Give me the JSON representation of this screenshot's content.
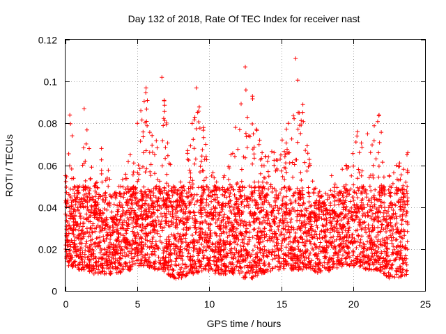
{
  "chart_data": {
    "type": "scatter",
    "title": "Day 132 of 2018, Rate Of TEC Index for receiver nast",
    "xlabel": "GPS time / hours",
    "ylabel": "ROTI / TECUs",
    "xlim": [
      0,
      25
    ],
    "ylim": [
      0,
      0.12
    ],
    "xticks": [
      0,
      5,
      10,
      15,
      20,
      25
    ],
    "yticks": [
      0,
      0.02,
      0.04,
      0.06,
      0.08,
      0.1,
      0.12
    ],
    "xtick_labels": [
      "0",
      "5",
      "10",
      "15",
      "20",
      "25"
    ],
    "ytick_labels": [
      "0",
      "0.02",
      "0.04",
      "0.06",
      "0.08",
      "0.1",
      "0.12"
    ],
    "grid": true,
    "marker": "+",
    "color": "#ff0000",
    "series": [
      {
        "name": "ROTI",
        "x_range_hours": [
          0,
          23.8
        ],
        "envelope": [
          {
            "x": 0.0,
            "low": 0.012,
            "high": 0.055
          },
          {
            "x": 0.3,
            "low": 0.012,
            "high": 0.084
          },
          {
            "x": 1.0,
            "low": 0.01,
            "high": 0.05
          },
          {
            "x": 1.3,
            "low": 0.01,
            "high": 0.087
          },
          {
            "x": 2.0,
            "low": 0.008,
            "high": 0.05
          },
          {
            "x": 2.5,
            "low": 0.008,
            "high": 0.068
          },
          {
            "x": 3.5,
            "low": 0.008,
            "high": 0.047
          },
          {
            "x": 4.5,
            "low": 0.01,
            "high": 0.065
          },
          {
            "x": 5.0,
            "low": 0.012,
            "high": 0.08
          },
          {
            "x": 5.6,
            "low": 0.012,
            "high": 0.097
          },
          {
            "x": 6.2,
            "low": 0.01,
            "high": 0.065
          },
          {
            "x": 6.7,
            "low": 0.01,
            "high": 0.102
          },
          {
            "x": 7.5,
            "low": 0.006,
            "high": 0.05
          },
          {
            "x": 8.0,
            "low": 0.005,
            "high": 0.052
          },
          {
            "x": 8.5,
            "low": 0.008,
            "high": 0.067
          },
          {
            "x": 9.1,
            "low": 0.008,
            "high": 0.097
          },
          {
            "x": 9.6,
            "low": 0.01,
            "high": 0.078
          },
          {
            "x": 10.5,
            "low": 0.008,
            "high": 0.052
          },
          {
            "x": 11.5,
            "low": 0.008,
            "high": 0.065
          },
          {
            "x": 12.5,
            "low": 0.006,
            "high": 0.107
          },
          {
            "x": 13.0,
            "low": 0.006,
            "high": 0.093
          },
          {
            "x": 13.5,
            "low": 0.008,
            "high": 0.072
          },
          {
            "x": 14.5,
            "low": 0.01,
            "high": 0.066
          },
          {
            "x": 15.5,
            "low": 0.01,
            "high": 0.08
          },
          {
            "x": 16.0,
            "low": 0.01,
            "high": 0.111
          },
          {
            "x": 16.5,
            "low": 0.01,
            "high": 0.089
          },
          {
            "x": 17.0,
            "low": 0.01,
            "high": 0.06
          },
          {
            "x": 17.8,
            "low": 0.008,
            "high": 0.045
          },
          {
            "x": 18.5,
            "low": 0.01,
            "high": 0.055
          },
          {
            "x": 19.5,
            "low": 0.012,
            "high": 0.06
          },
          {
            "x": 20.3,
            "low": 0.012,
            "high": 0.076
          },
          {
            "x": 21.0,
            "low": 0.01,
            "high": 0.075
          },
          {
            "x": 21.8,
            "low": 0.01,
            "high": 0.084
          },
          {
            "x": 22.5,
            "low": 0.006,
            "high": 0.055
          },
          {
            "x": 23.0,
            "low": 0.006,
            "high": 0.06
          },
          {
            "x": 23.8,
            "low": 0.008,
            "high": 0.066
          }
        ]
      }
    ]
  }
}
